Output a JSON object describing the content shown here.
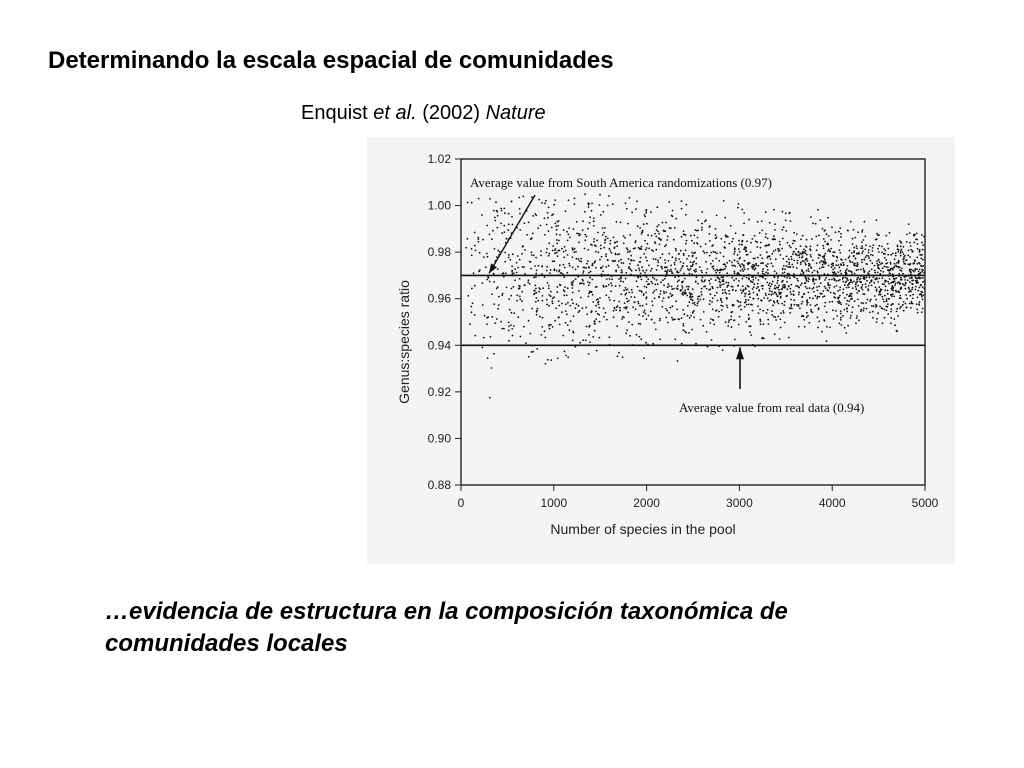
{
  "slide": {
    "title": "Determinando la escala espacial de comunidades",
    "citation": {
      "authors": "Enquist",
      "etal": "et al.",
      "year": "(2002)",
      "journal": "Nature"
    },
    "caption_line1": "…evidencia de estructura en la composición taxonómica de",
    "caption_line2": "comunidades locales"
  },
  "chart_data": {
    "type": "scatter",
    "title": "",
    "xlabel": "Number of species in the pool",
    "ylabel": "Genus:species ratio",
    "xlim": [
      0,
      5000
    ],
    "ylim": [
      0.88,
      1.02
    ],
    "x_ticks": [
      "0",
      "1000",
      "2000",
      "3000",
      "4000",
      "5000"
    ],
    "y_ticks": [
      "0.88",
      "0.90",
      "0.92",
      "0.94",
      "0.96",
      "0.98",
      "1.00",
      "1.02"
    ],
    "grid": false,
    "point_color": "#111111",
    "scatter_description": {
      "x_range": [
        50,
        5000
      ],
      "center_y": 0.97,
      "spread_small_pool": 0.03,
      "spread_large_pool": 0.012,
      "min_y_small_pool": 0.9
    },
    "reference_lines": [
      {
        "y": 0.97,
        "label": "Average value from South America randomizations (0.97)"
      },
      {
        "y": 0.94,
        "label": "Average value from real data (0.94)"
      }
    ]
  }
}
